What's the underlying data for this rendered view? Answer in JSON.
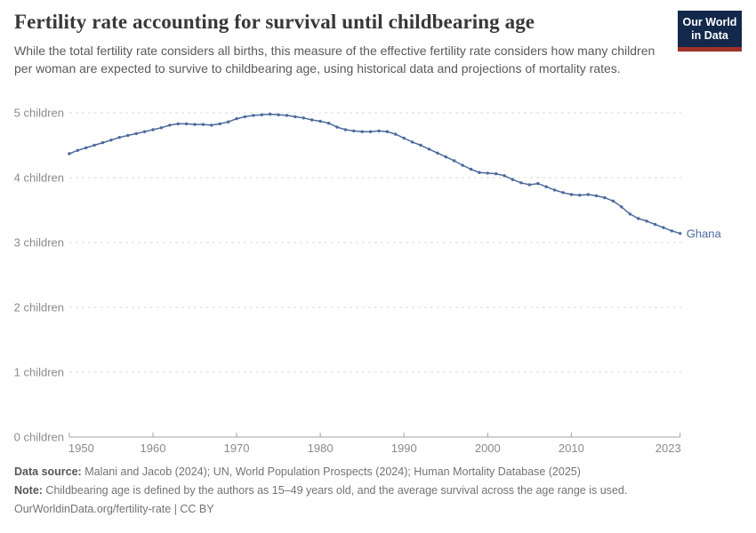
{
  "header": {
    "title": "Fertility rate accounting for survival until childbearing age",
    "subtitle": "While the total fertility rate considers all births, this measure of the effective fertility rate considers how many children per woman are expected to survive to childbearing age, using historical data and projections of mortality rates.",
    "logo_line1": "Our World",
    "logo_line2": "in Data",
    "logo_bg_color": "#12294b",
    "logo_accent_color": "#a03128"
  },
  "chart_data": {
    "type": "line",
    "title": "Fertility rate accounting for survival until childbearing age",
    "entity_label": "Ghana",
    "line_color": "#4C6A9C",
    "grid": "dashed horizontal gridlines",
    "legend_position": "end-of-line label",
    "xlim": [
      1950,
      2023
    ],
    "ylim": [
      0,
      5
    ],
    "xticks": [
      1950,
      1960,
      1970,
      1980,
      1990,
      2000,
      2010,
      2023
    ],
    "yticks": [
      {
        "value": 0,
        "label": "0 children"
      },
      {
        "value": 1,
        "label": "1 children"
      },
      {
        "value": 2,
        "label": "2 children"
      },
      {
        "value": 3,
        "label": "3 children"
      },
      {
        "value": 4,
        "label": "4 children"
      },
      {
        "value": 5,
        "label": "5 children"
      }
    ],
    "x": [
      1950,
      1951,
      1952,
      1953,
      1954,
      1955,
      1956,
      1957,
      1958,
      1959,
      1960,
      1961,
      1962,
      1963,
      1964,
      1965,
      1966,
      1967,
      1968,
      1969,
      1970,
      1971,
      1972,
      1973,
      1974,
      1975,
      1976,
      1977,
      1978,
      1979,
      1980,
      1981,
      1982,
      1983,
      1984,
      1985,
      1986,
      1987,
      1988,
      1989,
      1990,
      1991,
      1992,
      1993,
      1994,
      1995,
      1996,
      1997,
      1998,
      1999,
      2000,
      2001,
      2002,
      2003,
      2004,
      2005,
      2006,
      2007,
      2008,
      2009,
      2010,
      2011,
      2012,
      2013,
      2014,
      2015,
      2016,
      2017,
      2018,
      2019,
      2020,
      2021,
      2022,
      2023
    ],
    "series": [
      {
        "name": "Ghana",
        "values": [
          4.37,
          4.42,
          4.46,
          4.5,
          4.54,
          4.58,
          4.62,
          4.65,
          4.68,
          4.71,
          4.74,
          4.77,
          4.81,
          4.83,
          4.83,
          4.82,
          4.82,
          4.81,
          4.83,
          4.86,
          4.91,
          4.94,
          4.96,
          4.97,
          4.98,
          4.97,
          4.96,
          4.94,
          4.92,
          4.89,
          4.87,
          4.84,
          4.78,
          4.74,
          4.72,
          4.71,
          4.71,
          4.72,
          4.71,
          4.67,
          4.61,
          4.55,
          4.5,
          4.44,
          4.38,
          4.32,
          4.26,
          4.19,
          4.13,
          4.08,
          4.07,
          4.06,
          4.03,
          3.97,
          3.92,
          3.89,
          3.91,
          3.86,
          3.81,
          3.77,
          3.74,
          3.73,
          3.74,
          3.72,
          3.69,
          3.64,
          3.55,
          3.44,
          3.37,
          3.33,
          3.28,
          3.23,
          3.18,
          3.14
        ]
      }
    ]
  },
  "footer": {
    "data_source_label": "Data source:",
    "data_source_text": " Malani and Jacob (2024); UN, World Population Prospects (2024); Human Mortality Database (2025)",
    "note_label": "Note:",
    "note_text": " Childbearing age is defined by the authors as 15–49 years old, and the average survival across the age range is used.",
    "license_line": "OurWorldinData.org/fertility-rate | CC BY"
  }
}
